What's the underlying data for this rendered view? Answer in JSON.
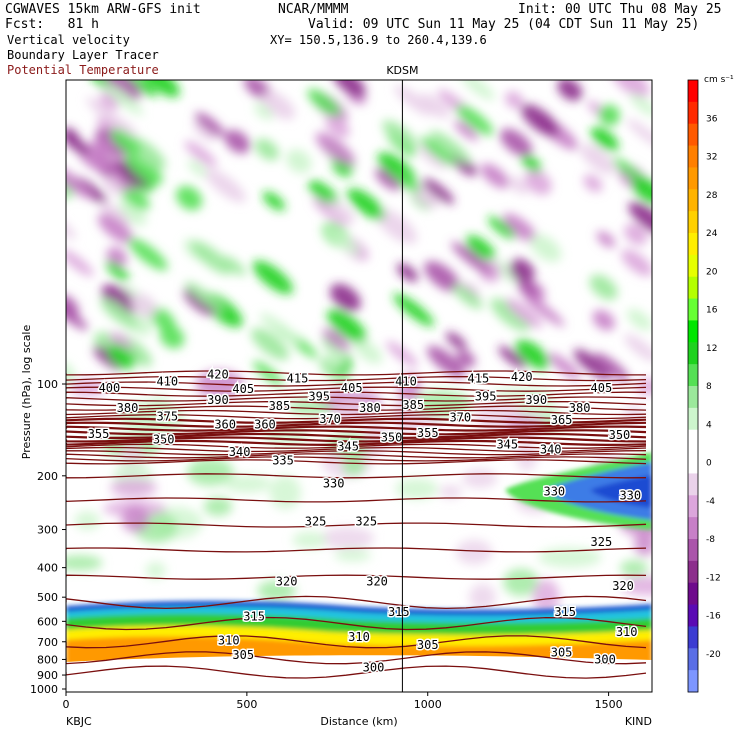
{
  "header": {
    "model": "CGWAVES 15km ARW-GFS init",
    "org": "NCAR/MMMM",
    "init": "Init: 00 UTC Thu 08 May 25",
    "fcst": "Fcst:   81 h",
    "valid": "Valid: 09 UTC Sun 11 May 25 (04 CDT Sun 11 May 25)",
    "xy": "XY= 150.5,136.9 to 260.4,139.6",
    "field1": "Vertical velocity",
    "field2": "Boundary Layer Tracer",
    "field3": "Potential Temperature",
    "field3_color": "#8b1a1a"
  },
  "chart_data": {
    "type": "heatmap",
    "station_marker": "KDSM",
    "station_marker_x_km": 930,
    "xlabel": "Distance (km)",
    "ylabel": "Pressure (hPa), log scale",
    "x_start_label": "KBJC",
    "x_end_label": "KIND",
    "xlim": [
      0,
      1620
    ],
    "x_ticks": [
      0,
      500,
      1000,
      1500
    ],
    "y_scale": "log",
    "y_ticks": [
      100,
      200,
      300,
      400,
      500,
      600,
      700,
      800,
      900,
      1000
    ],
    "colorbar": {
      "unit": "cm s⁻¹",
      "labels": [
        36,
        32,
        28,
        24,
        20,
        16,
        12,
        8,
        4,
        0,
        -4,
        -8,
        -12,
        -16,
        -20
      ],
      "colors": [
        "#ff0000",
        "#ff2a00",
        "#ff5a00",
        "#ff7f00",
        "#ff9900",
        "#ffb300",
        "#ffd000",
        "#ffee00",
        "#e6ff00",
        "#b4ff00",
        "#66ff33",
        "#00e600",
        "#1fd21f",
        "#55e055",
        "#9be89b",
        "#cdf5cd",
        "#ffffff",
        "#ffffff",
        "#ead2ea",
        "#dca6dc",
        "#c77fc7",
        "#aa55aa",
        "#8c2e8c",
        "#6e0a8c",
        "#5a0ab4",
        "#3c3cd2",
        "#5a6ee6",
        "#7d96ff"
      ]
    },
    "theta_contour_labels": [
      {
        "value": 420,
        "x_km": 420,
        "p": 93
      },
      {
        "value": 415,
        "x_km": 640,
        "p": 96
      },
      {
        "value": 410,
        "x_km": 280,
        "p": 98
      },
      {
        "value": 410,
        "x_km": 940,
        "p": 98
      },
      {
        "value": 415,
        "x_km": 1140,
        "p": 96
      },
      {
        "value": 420,
        "x_km": 1260,
        "p": 95
      },
      {
        "value": 400,
        "x_km": 120,
        "p": 103
      },
      {
        "value": 405,
        "x_km": 490,
        "p": 104
      },
      {
        "value": 405,
        "x_km": 790,
        "p": 103
      },
      {
        "value": 405,
        "x_km": 1480,
        "p": 103
      },
      {
        "value": 390,
        "x_km": 420,
        "p": 113
      },
      {
        "value": 395,
        "x_km": 700,
        "p": 110
      },
      {
        "value": 395,
        "x_km": 1160,
        "p": 110
      },
      {
        "value": 390,
        "x_km": 1300,
        "p": 113
      },
      {
        "value": 385,
        "x_km": 590,
        "p": 118
      },
      {
        "value": 385,
        "x_km": 960,
        "p": 117
      },
      {
        "value": 380,
        "x_km": 170,
        "p": 120
      },
      {
        "value": 380,
        "x_km": 840,
        "p": 120
      },
      {
        "value": 380,
        "x_km": 1420,
        "p": 120
      },
      {
        "value": 375,
        "x_km": 280,
        "p": 128
      },
      {
        "value": 370,
        "x_km": 730,
        "p": 130
      },
      {
        "value": 370,
        "x_km": 1090,
        "p": 129
      },
      {
        "value": 365,
        "x_km": 1370,
        "p": 131
      },
      {
        "value": 360,
        "x_km": 440,
        "p": 136
      },
      {
        "value": 360,
        "x_km": 550,
        "p": 136
      },
      {
        "value": 355,
        "x_km": 90,
        "p": 146
      },
      {
        "value": 355,
        "x_km": 1000,
        "p": 145
      },
      {
        "value": 350,
        "x_km": 270,
        "p": 152
      },
      {
        "value": 350,
        "x_km": 900,
        "p": 150
      },
      {
        "value": 350,
        "x_km": 1530,
        "p": 147
      },
      {
        "value": 345,
        "x_km": 780,
        "p": 160
      },
      {
        "value": 345,
        "x_km": 1220,
        "p": 158
      },
      {
        "value": 340,
        "x_km": 480,
        "p": 167
      },
      {
        "value": 340,
        "x_km": 1340,
        "p": 164
      },
      {
        "value": 335,
        "x_km": 600,
        "p": 178
      },
      {
        "value": 330,
        "x_km": 740,
        "p": 212
      },
      {
        "value": 330,
        "x_km": 1350,
        "p": 225
      },
      {
        "value": 330,
        "x_km": 1560,
        "p": 232
      },
      {
        "value": 325,
        "x_km": 690,
        "p": 282
      },
      {
        "value": 325,
        "x_km": 830,
        "p": 282
      },
      {
        "value": 325,
        "x_km": 1480,
        "p": 330
      },
      {
        "value": 320,
        "x_km": 610,
        "p": 445
      },
      {
        "value": 320,
        "x_km": 860,
        "p": 445
      },
      {
        "value": 320,
        "x_km": 1540,
        "p": 460
      },
      {
        "value": 315,
        "x_km": 520,
        "p": 578
      },
      {
        "value": 315,
        "x_km": 920,
        "p": 560
      },
      {
        "value": 315,
        "x_km": 1380,
        "p": 560
      },
      {
        "value": 310,
        "x_km": 450,
        "p": 693
      },
      {
        "value": 310,
        "x_km": 810,
        "p": 676
      },
      {
        "value": 310,
        "x_km": 1550,
        "p": 650
      },
      {
        "value": 305,
        "x_km": 490,
        "p": 775
      },
      {
        "value": 305,
        "x_km": 1000,
        "p": 718
      },
      {
        "value": 305,
        "x_km": 1370,
        "p": 760
      },
      {
        "value": 300,
        "x_km": 850,
        "p": 850
      },
      {
        "value": 300,
        "x_km": 1490,
        "p": 800
      }
    ]
  }
}
